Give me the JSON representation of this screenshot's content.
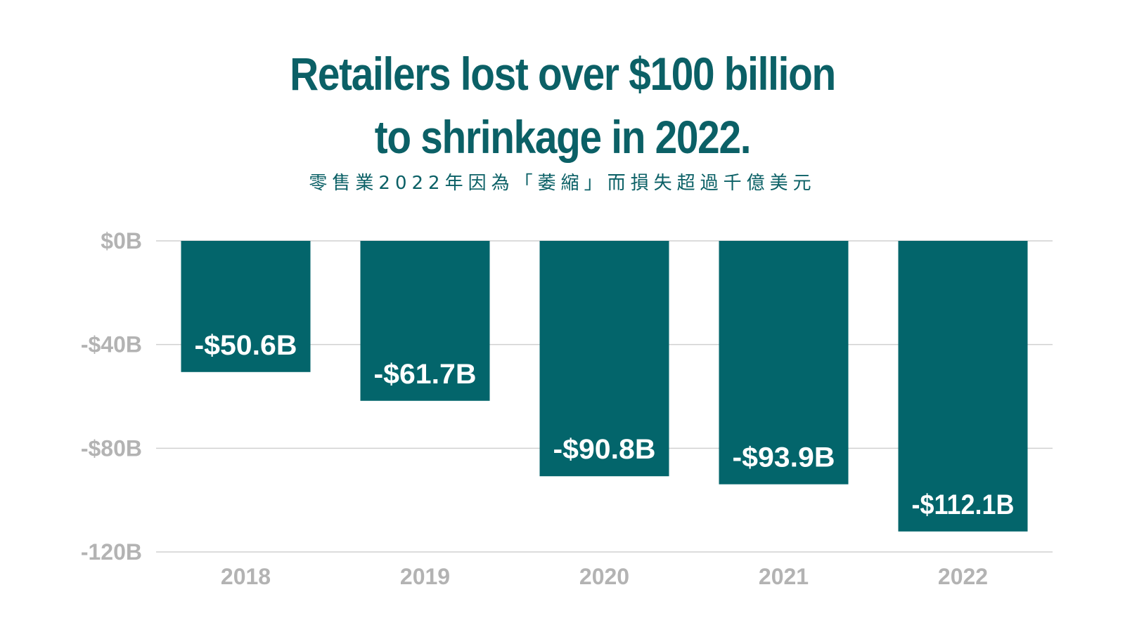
{
  "title_lines": [
    "Retailers lost over $100 billion",
    "to shrinkage in 2022."
  ],
  "subtitle": "零售業2022年因為「萎縮」而損失超過千億美元",
  "colors": {
    "bar": "#03656b",
    "title": "#0b6066",
    "grid": "#d0d0d0",
    "axis_text": "#b3b3b3",
    "bar_text": "#ffffff"
  },
  "chart_data": {
    "type": "bar",
    "categories": [
      "2018",
      "2019",
      "2020",
      "2021",
      "2022"
    ],
    "values": [
      -50.6,
      -61.7,
      -90.8,
      -93.9,
      -112.1
    ],
    "value_labels": [
      "-$50.6B",
      "-$61.7B",
      "-$90.8B",
      "-$93.9B",
      "-$112.1B"
    ],
    "yticks": [
      0,
      -40,
      -80,
      -120
    ],
    "ytick_labels": [
      "$0B",
      "-$40B",
      "-$80B",
      "-120B"
    ],
    "ylim": [
      -120,
      0
    ],
    "xlabel": "",
    "ylabel": "",
    "grid": true
  }
}
